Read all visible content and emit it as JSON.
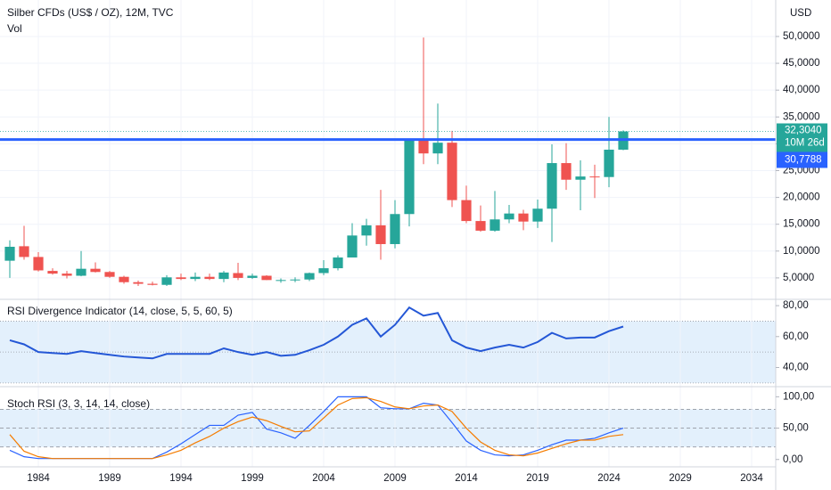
{
  "chart_data": [
    {
      "type": "candlestick",
      "title": "Silber CFDs (US$ / OZ), 12M, TVC",
      "subtitle": "Vol",
      "currency": "USD",
      "up_color": "#26a69a",
      "down_color": "#ef5350",
      "x": [
        1982,
        1983,
        1984,
        1985,
        1986,
        1987,
        1988,
        1989,
        1990,
        1991,
        1992,
        1993,
        1994,
        1995,
        1996,
        1997,
        1998,
        1999,
        2000,
        2001,
        2002,
        2003,
        2004,
        2005,
        2006,
        2007,
        2008,
        2009,
        2010,
        2011,
        2012,
        2013,
        2014,
        2015,
        2016,
        2017,
        2018,
        2019,
        2020,
        2021,
        2022,
        2023,
        2024,
        2025
      ],
      "open": [
        8.2,
        10.9,
        8.9,
        6.3,
        5.8,
        5.4,
        6.7,
        6.1,
        5.2,
        4.2,
        3.9,
        3.7,
        5.1,
        4.8,
        5.2,
        4.8,
        5.9,
        5.0,
        5.4,
        4.6,
        4.6,
        4.7,
        5.9,
        6.8,
        8.8,
        12.9,
        14.8,
        11.3,
        16.9,
        30.8,
        28.2,
        30.2,
        19.5,
        15.6,
        13.8,
        15.9,
        17.0,
        15.5,
        17.9,
        26.4,
        23.3,
        23.9,
        23.8,
        28.9
      ],
      "high": [
        12.0,
        14.7,
        9.8,
        6.8,
        6.3,
        10.0,
        7.9,
        6.3,
        5.4,
        4.5,
        4.3,
        5.5,
        5.8,
        6.0,
        5.8,
        6.3,
        7.8,
        5.8,
        5.5,
        4.9,
        5.1,
        6.0,
        8.3,
        9.2,
        15.2,
        16.0,
        21.4,
        19.5,
        30.9,
        49.8,
        37.5,
        32.4,
        22.2,
        18.5,
        21.2,
        18.6,
        17.7,
        19.6,
        29.9,
        30.1,
        26.9,
        26.1,
        35.0,
        32.5
      ],
      "low": [
        5.0,
        8.4,
        6.2,
        5.6,
        4.9,
        5.3,
        6.0,
        5.0,
        3.9,
        3.5,
        3.6,
        3.5,
        4.6,
        4.4,
        4.6,
        4.2,
        4.6,
        4.8,
        4.6,
        4.1,
        4.2,
        4.4,
        5.5,
        6.4,
        8.8,
        11.0,
        8.4,
        10.5,
        14.6,
        26.2,
        26.2,
        18.2,
        15.2,
        13.6,
        13.6,
        15.2,
        13.9,
        14.3,
        11.7,
        21.4,
        17.6,
        19.9,
        21.9,
        28.8
      ],
      "close": [
        10.8,
        8.9,
        6.4,
        5.8,
        5.4,
        6.7,
        6.1,
        5.2,
        4.2,
        3.9,
        3.7,
        5.1,
        4.8,
        5.2,
        4.8,
        6.0,
        5.0,
        5.4,
        4.6,
        4.6,
        4.7,
        5.9,
        6.8,
        8.8,
        12.9,
        14.8,
        11.3,
        16.9,
        30.8,
        28.2,
        30.2,
        19.5,
        15.6,
        13.8,
        15.9,
        17.0,
        15.5,
        17.9,
        26.4,
        23.3,
        23.9,
        23.8,
        28.9,
        32.3
      ],
      "xlim": [
        1981.3125,
        2035.6875
      ],
      "ylim": [
        1,
        56.8
      ],
      "yticks": [
        {
          "value": 5,
          "label": "5,0000"
        },
        {
          "value": 10,
          "label": "10,0000"
        },
        {
          "value": 15,
          "label": "15,0000"
        },
        {
          "value": 20,
          "label": "20,0000"
        },
        {
          "value": 25,
          "label": "25,0000"
        },
        {
          "value": 30,
          "label": "30,0000"
        },
        {
          "value": 35,
          "label": "35,0000"
        },
        {
          "value": 40,
          "label": "40,0000"
        },
        {
          "value": 45,
          "label": "45,0000"
        },
        {
          "value": 50,
          "label": "50,0000"
        }
      ],
      "last_price": {
        "value": 32.304,
        "label": "32,3040",
        "countdown": "10M 26d"
      },
      "hline": {
        "value": 30.7788,
        "label": "30,7788",
        "color": "#2962ff"
      },
      "grid": true
    },
    {
      "type": "line",
      "title": "RSI Divergence Indicator (14, close, 5, 5, 60, 5)",
      "x": [
        1982,
        1983,
        1984,
        1985,
        1986,
        1987,
        1988,
        1989,
        1990,
        1991,
        1992,
        1993,
        1994,
        1995,
        1996,
        1997,
        1998,
        1999,
        2000,
        2001,
        2002,
        2003,
        2004,
        2005,
        2006,
        2007,
        2008,
        2009,
        2010,
        2011,
        2012,
        2013,
        2014,
        2015,
        2016,
        2017,
        2018,
        2019,
        2020,
        2021,
        2022,
        2023,
        2024,
        2025
      ],
      "series": [
        {
          "color": "#2457d6",
          "values": [
            57.6,
            55.0,
            50.0,
            49.4,
            48.8,
            50.6,
            49.4,
            48.2,
            47.1,
            46.5,
            45.9,
            48.8,
            48.8,
            48.8,
            48.8,
            52.4,
            50.0,
            48.2,
            50.0,
            47.6,
            48.2,
            51.2,
            54.7,
            60.0,
            67.6,
            71.8,
            60.0,
            67.6,
            78.8,
            73.5,
            75.3,
            57.6,
            52.9,
            50.6,
            52.9,
            54.7,
            52.9,
            56.5,
            62.4,
            58.8,
            59.4,
            59.4,
            63.5,
            66.5
          ]
        }
      ],
      "xlim": [
        1981.3125,
        2035.6875
      ],
      "ylim": [
        28.2,
        83.5
      ],
      "yticks": [
        {
          "value": 40,
          "label": "40,00"
        },
        {
          "value": 60,
          "label": "60,00"
        },
        {
          "value": 80,
          "label": "80,00"
        }
      ],
      "band": [
        30,
        70
      ],
      "band_color": "#e3f0fc",
      "levels": [
        30,
        50,
        70
      ]
    },
    {
      "type": "line",
      "title": "Stoch RSI (3, 3, 14, 14, close)",
      "x": [
        1982,
        1983,
        1984,
        1985,
        1986,
        1987,
        1988,
        1989,
        1990,
        1991,
        1992,
        1993,
        1994,
        1995,
        1996,
        1997,
        1998,
        1999,
        2000,
        2001,
        2002,
        2003,
        2004,
        2005,
        2006,
        2007,
        2008,
        2009,
        2010,
        2011,
        2012,
        2013,
        2014,
        2015,
        2016,
        2017,
        2018,
        2019,
        2020,
        2021,
        2022,
        2023,
        2024,
        2025
      ],
      "series": [
        {
          "color": "#2962ff",
          "values": [
            14.7,
            4.4,
            1.5,
            1.5,
            1.5,
            1.5,
            1.5,
            1.5,
            1.5,
            1.5,
            1.5,
            11.8,
            25.0,
            39.7,
            54.4,
            54.4,
            70.6,
            75.0,
            48.5,
            42.6,
            33.8,
            54.4,
            76.5,
            100,
            100,
            100,
            82.4,
            80.9,
            80.9,
            89.7,
            86.8,
            58.8,
            29.4,
            14.7,
            7.4,
            5.9,
            7.4,
            14.7,
            23.5,
            30.9,
            30.9,
            33.8,
            42.6,
            50.0
          ]
        },
        {
          "color": "#f57c00",
          "values": [
            39.7,
            13.2,
            4.4,
            1.5,
            1.5,
            1.5,
            1.5,
            1.5,
            1.5,
            1.5,
            1.5,
            7.4,
            14.7,
            26.5,
            36.8,
            50.0,
            60.3,
            67.6,
            61.8,
            52.9,
            44.1,
            45.6,
            66.2,
            86.8,
            97.1,
            98.5,
            92.6,
            83.8,
            80.9,
            85.3,
            86.8,
            76.5,
            50.0,
            27.9,
            14.7,
            7.4,
            5.9,
            10.3,
            17.6,
            25.0,
            30.9,
            30.9,
            36.8,
            39.7
          ]
        }
      ],
      "xlim": [
        1981.3125,
        2035.6875
      ],
      "ylim": [
        -10.3,
        114.7
      ],
      "xticks": [
        1984,
        1989,
        1994,
        1999,
        2004,
        2009,
        2014,
        2019,
        2024,
        2029,
        2034
      ],
      "yticks": [
        {
          "value": 0,
          "label": "0,00"
        },
        {
          "value": 50,
          "label": "50,00"
        },
        {
          "value": 100,
          "label": "100,00"
        }
      ],
      "band": [
        20,
        80
      ],
      "band_color": "#e3f0fc",
      "levels": [
        20,
        50,
        80
      ]
    }
  ]
}
